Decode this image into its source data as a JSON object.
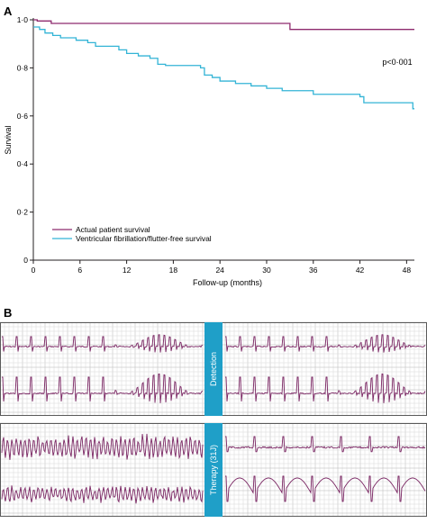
{
  "panel_a_label": "A",
  "panel_b_label": "B",
  "colors": {
    "actual": "#8e2a6e",
    "vf_free": "#33b4d6",
    "axis": "#231f20",
    "ecg_grid_minor": "#d7d7d7",
    "ecg_grid_major": "#b5b5b5",
    "ecg_trace": "#7a2663",
    "divider": "#1f9fc8",
    "divider_text": "#ffffff",
    "frame": "#5a5a5a"
  },
  "chart_data": {
    "type": "line",
    "xlabel": "Follow-up (months)",
    "ylabel": "Survival",
    "xlim": [
      0,
      49
    ],
    "ylim": [
      0,
      1.0
    ],
    "x_ticks": [
      0,
      6,
      12,
      18,
      24,
      30,
      36,
      42,
      48
    ],
    "y_ticks": [
      0,
      0.2,
      0.4,
      0.6,
      0.8,
      1.0
    ],
    "y_tick_labels": [
      "0",
      "0·2",
      "0·4",
      "0·6",
      "0·8",
      "1·0"
    ],
    "x_tick_labels": [
      "0",
      "6",
      "12",
      "18",
      "24",
      "30",
      "36",
      "42",
      "48"
    ],
    "annotation": "p<0·001",
    "legend_position": "lower-left",
    "step": true,
    "series": [
      {
        "name": "Actual patient survival",
        "color_key": "actual",
        "points": [
          [
            0,
            1.0
          ],
          [
            0.5,
            0.995
          ],
          [
            2.3,
            0.985
          ],
          [
            33,
            0.985
          ],
          [
            33,
            0.96
          ],
          [
            49,
            0.96
          ]
        ]
      },
      {
        "name": "Ventricular fibrillation/flutter-free survival",
        "color_key": "vf_free",
        "points": [
          [
            0,
            0.97
          ],
          [
            0.8,
            0.96
          ],
          [
            1.5,
            0.945
          ],
          [
            2.5,
            0.935
          ],
          [
            3.5,
            0.925
          ],
          [
            5.5,
            0.915
          ],
          [
            7,
            0.905
          ],
          [
            8,
            0.89
          ],
          [
            11,
            0.875
          ],
          [
            12,
            0.86
          ],
          [
            13.5,
            0.85
          ],
          [
            15,
            0.84
          ],
          [
            16,
            0.815
          ],
          [
            17,
            0.81
          ],
          [
            21.5,
            0.8
          ],
          [
            22,
            0.77
          ],
          [
            23,
            0.76
          ],
          [
            24,
            0.745
          ],
          [
            26,
            0.735
          ],
          [
            28,
            0.725
          ],
          [
            30,
            0.715
          ],
          [
            32,
            0.705
          ],
          [
            36,
            0.69
          ],
          [
            42,
            0.68
          ],
          [
            42.5,
            0.655
          ],
          [
            48.8,
            0.655
          ],
          [
            48.8,
            0.63
          ],
          [
            49,
            0.63
          ]
        ]
      }
    ]
  },
  "ecg_strips": {
    "detection_label": "Detection",
    "therapy_label": "Therapy (31J)"
  }
}
